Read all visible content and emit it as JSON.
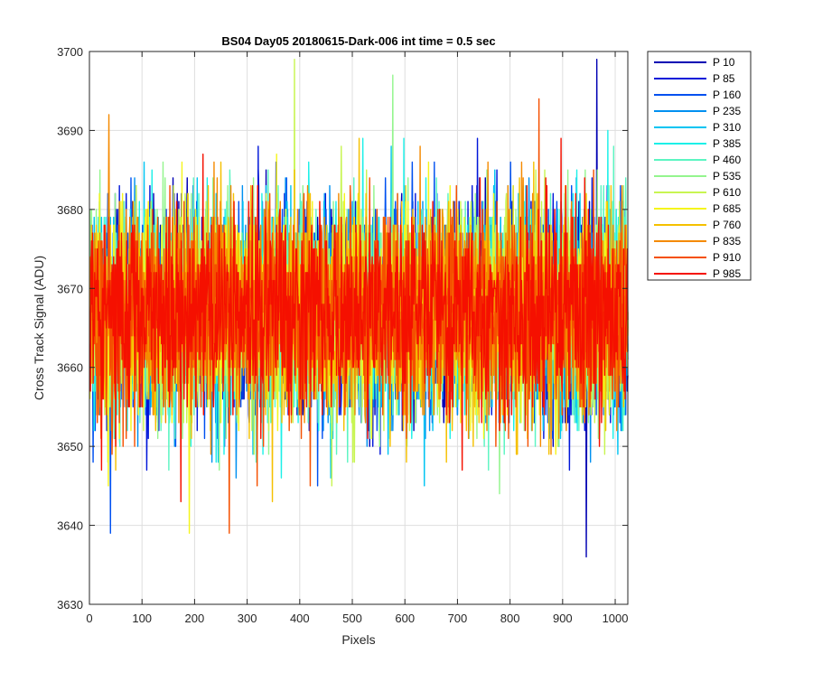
{
  "chart_data": {
    "type": "line",
    "title": "BS04 Day05 20180615-Dark-006 int time = 0.5 sec",
    "xlabel": "Pixels",
    "ylabel": "Cross Track Signal (ADU)",
    "xlim": [
      0,
      1024
    ],
    "ylim": [
      3630,
      3700
    ],
    "xticks": [
      0,
      100,
      200,
      300,
      400,
      500,
      600,
      700,
      800,
      900,
      1000
    ],
    "yticks": [
      3630,
      3640,
      3650,
      3660,
      3670,
      3680,
      3690,
      3700
    ],
    "grid": true,
    "legend_position": "outside-top-right",
    "x": {
      "start": 1,
      "end": 1024,
      "step": 1
    },
    "series_summary": {
      "mean": 3667,
      "std": 6.5,
      "min": 3636,
      "max": 3699
    },
    "series": [
      {
        "name": "P 10",
        "color": "#0000b3"
      },
      {
        "name": "P 85",
        "color": "#0016d9"
      },
      {
        "name": "P 160",
        "color": "#0050f0"
      },
      {
        "name": "P 235",
        "color": "#0090f0"
      },
      {
        "name": "P 310",
        "color": "#00c4f2"
      },
      {
        "name": "P 385",
        "color": "#1cf0e8"
      },
      {
        "name": "P 460",
        "color": "#5cf5c2"
      },
      {
        "name": "P 535",
        "color": "#94f58e"
      },
      {
        "name": "P 610",
        "color": "#c8f552"
      },
      {
        "name": "P 685",
        "color": "#f5f51c"
      },
      {
        "name": "P 760",
        "color": "#f5c000"
      },
      {
        "name": "P 835",
        "color": "#f58a00"
      },
      {
        "name": "P 910",
        "color": "#f55000"
      },
      {
        "name": "P 985",
        "color": "#f51000"
      }
    ],
    "annotated_extremes": [
      {
        "series": "P 10",
        "x": 965,
        "y": 3699
      },
      {
        "series": "P 10",
        "x": 945,
        "y": 3636
      },
      {
        "series": "P 160",
        "x": 40,
        "y": 3639
      },
      {
        "series": "P 610",
        "x": 390,
        "y": 3699
      },
      {
        "series": "P 685",
        "x": 190,
        "y": 3639
      },
      {
        "series": "P 910",
        "x": 266,
        "y": 3639
      },
      {
        "series": "P 835",
        "x": 37,
        "y": 3692
      },
      {
        "series": "P 910",
        "x": 855,
        "y": 3694
      }
    ]
  }
}
